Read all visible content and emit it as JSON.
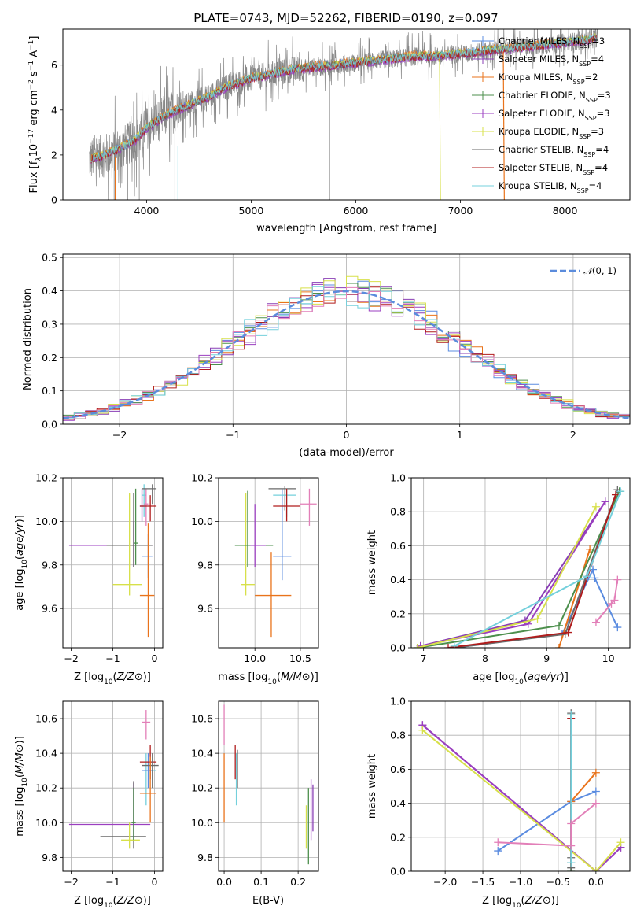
{
  "figure": {
    "title": "PLATE=0743, MJD=52262, FIBERID=0190, z=0.097"
  },
  "colors": {
    "Chabrier MILES": "#5b8ce0",
    "Salpeter MILES": "#8a3fb5",
    "Kroupa MILES": "#e9731b",
    "Chabrier ELODIE": "#4c8f4c",
    "Salpeter ELODIE": "#9b3fc0",
    "Kroupa ELODIE": "#d7e04a",
    "Chabrier STELIB": "#6a6a6a",
    "Salpeter STELIB": "#b01c1c",
    "Kroupa STELIB": "#74d0dc",
    "data": "#888888",
    "normal": "#5b8cdc",
    "pink": "#e27fb8"
  },
  "chart_data": [
    {
      "id": "spectrum",
      "type": "line",
      "title": "PLATE=0743, MJD=52262, FIBERID=0190, z=0.097",
      "xlabel": "wavelength [Angstrom, rest frame]",
      "ylabel": "Flux [f$_\\lambda$10$^{-17}$ erg cm$^{-2}$ s$^{-1}$ A$^{-1}$]",
      "ylabel_parts": [
        "Flux [f",
        "λ",
        "10",
        "−17",
        " erg cm",
        "−2",
        " s",
        "−1",
        " A",
        "−1",
        "]"
      ],
      "xlim": [
        3200,
        8620
      ],
      "ylim": [
        0,
        7.6
      ],
      "xticks": [
        4000,
        5000,
        6000,
        7000,
        8000
      ],
      "yticks": [
        0,
        2,
        4,
        6
      ],
      "grid": false,
      "legend_position": "top-right",
      "continuum": {
        "x": [
          3450,
          3600,
          3750,
          3900,
          4000,
          4200,
          4400,
          4600,
          4800,
          5000,
          5200,
          5400,
          5600,
          5800,
          6000,
          6200,
          6400,
          6600,
          6800,
          7000,
          7200,
          7400,
          7600,
          7800,
          8000,
          8200,
          8400
        ],
        "y": [
          1.8,
          2.0,
          2.3,
          2.7,
          3.2,
          3.8,
          4.2,
          4.6,
          5.1,
          5.4,
          5.6,
          5.8,
          5.9,
          6.0,
          6.1,
          6.2,
          6.3,
          6.4,
          6.4,
          6.5,
          6.6,
          6.7,
          6.8,
          6.9,
          7.0,
          7.1,
          7.3
        ]
      },
      "series": [
        {
          "label": "Chabrier MILES, N_SSP=3",
          "name": "Chabrier MILES",
          "nssp": "3"
        },
        {
          "label": "Salpeter MILES, N_SSP=4",
          "name": "Salpeter MILES",
          "nssp": "4"
        },
        {
          "label": "Kroupa MILES, N_SSP=2",
          "name": "Kroupa MILES",
          "nssp": "2"
        },
        {
          "label": "Chabrier ELODIE, N_SSP=3",
          "name": "Chabrier ELODIE",
          "nssp": "3"
        },
        {
          "label": "Salpeter ELODIE, N_SSP=3",
          "name": "Salpeter ELODIE",
          "nssp": "3"
        },
        {
          "label": "Kroupa ELODIE, N_SSP=3",
          "name": "Kroupa ELODIE",
          "nssp": "3"
        },
        {
          "label": "Chabrier STELIB, N_SSP=4",
          "name": "Chabrier STELIB",
          "nssp": "4"
        },
        {
          "label": "Salpeter STELIB, N_SSP=4",
          "name": "Salpeter STELIB",
          "nssp": "4"
        },
        {
          "label": "Kroupa STELIB, N_SSP=4",
          "name": "Kroupa STELIB",
          "nssp": "4"
        }
      ]
    },
    {
      "id": "residuals",
      "type": "line",
      "xlabel": "(data-model)/error",
      "ylabel": "Normed distribution",
      "xlim": [
        -2.5,
        2.5
      ],
      "ylim": [
        0,
        0.51
      ],
      "xticks": [
        -2,
        -1,
        0,
        1,
        2
      ],
      "yticks": [
        0.0,
        0.1,
        0.2,
        0.3,
        0.4,
        0.5
      ],
      "grid": true,
      "legend_position": "top-right",
      "legend_label": "N(0,1)",
      "bin_width": 0.1,
      "hist_series": [
        "Chabrier MILES",
        "Salpeter MILES",
        "Kroupa MILES",
        "Chabrier ELODIE",
        "Salpeter ELODIE",
        "Kroupa ELODIE",
        "Salpeter STELIB",
        "Kroupa STELIB",
        "pink"
      ]
    },
    {
      "id": "Z_age",
      "type": "scatter",
      "xlabel": "Z [log10(Z/Z⊙)]",
      "ylabel": "age [log10(age/yr)]",
      "xlim": [
        -2.2,
        0.2
      ],
      "ylim": [
        9.42,
        10.2
      ],
      "xticks": [
        -2,
        -1,
        0
      ],
      "yticks": [
        9.6,
        9.8,
        10.0,
        10.2
      ],
      "grid": true
    },
    {
      "id": "mass_age",
      "type": "scatter",
      "xlabel": "mass [log10(M/M⊙)]",
      "ylabel": "",
      "xlim": [
        9.6,
        10.7
      ],
      "ylim": [
        9.42,
        10.2
      ],
      "xticks": [
        10.0,
        10.5
      ],
      "yticks": [
        9.6,
        9.8,
        10.0,
        10.2
      ],
      "grid": true
    },
    {
      "id": "age_weight",
      "type": "line",
      "xlabel": "age [log10(age/yr)]",
      "ylabel": "mass weight",
      "xlim": [
        6.8,
        10.35
      ],
      "ylim": [
        0,
        1.0
      ],
      "xticks": [
        7,
        8,
        9,
        10
      ],
      "yticks": [
        0.0,
        0.2,
        0.4,
        0.6,
        0.8,
        1.0
      ],
      "grid": true
    },
    {
      "id": "Z_mass",
      "type": "scatter",
      "xlabel": "Z [log10(Z/Z⊙)]",
      "ylabel": "mass [log10(M/M⊙)]",
      "xlim": [
        -2.2,
        0.2
      ],
      "ylim": [
        9.72,
        10.7
      ],
      "xticks": [
        -2,
        -1,
        0
      ],
      "yticks": [
        9.8,
        10.0,
        10.2,
        10.4,
        10.6
      ],
      "grid": true
    },
    {
      "id": "ebv_mass",
      "type": "scatter",
      "xlabel": "E(B-V)",
      "ylabel": "",
      "xlim": [
        -0.015,
        0.255
      ],
      "ylim": [
        9.72,
        10.7
      ],
      "xticks": [
        0.0,
        0.1,
        0.2
      ],
      "yticks": [
        9.8,
        10.0,
        10.2,
        10.4,
        10.6
      ],
      "grid": true
    },
    {
      "id": "Z_weight",
      "type": "line",
      "xlabel": "Z [log10(Z/Z⊙)]",
      "ylabel": "mass weight",
      "xlim": [
        -2.45,
        0.45
      ],
      "ylim": [
        0,
        1.0
      ],
      "xticks": [
        -2.0,
        -1.5,
        -1.0,
        -0.5,
        0.0
      ],
      "yticks": [
        0.0,
        0.2,
        0.4,
        0.6,
        0.8,
        1.0
      ],
      "grid": true
    }
  ],
  "age_weight_series": [
    {
      "name": "Chabrier MILES",
      "age": [
        7.5,
        9.25,
        9.75,
        9.78,
        10.15
      ],
      "w": [
        0.0,
        0.08,
        0.46,
        0.41,
        0.12
      ]
    },
    {
      "name": "Salpeter MILES",
      "age": [
        6.95,
        8.65,
        9.95
      ],
      "w": [
        0.01,
        0.16,
        0.86
      ]
    },
    {
      "name": "Kroupa MILES",
      "age": [
        9.2,
        9.7
      ],
      "w": [
        0.0,
        0.58
      ]
    },
    {
      "name": "Chabrier ELODIE",
      "age": [
        6.9,
        9.2,
        10.18
      ],
      "w": [
        0.0,
        0.13,
        0.92
      ]
    },
    {
      "name": "Salpeter ELODIE",
      "age": [
        6.95,
        8.7,
        9.95
      ],
      "w": [
        0.01,
        0.14,
        0.86
      ]
    },
    {
      "name": "Kroupa ELODIE",
      "age": [
        6.9,
        8.85,
        9.8
      ],
      "w": [
        0.0,
        0.17,
        0.83
      ]
    },
    {
      "name": "Chabrier STELIB",
      "age": [
        7.5,
        9.3,
        10.15
      ],
      "w": [
        0.0,
        0.08,
        0.93
      ]
    },
    {
      "name": "Salpeter STELIB",
      "age": [
        7.4,
        9.35,
        10.12
      ],
      "w": [
        0.0,
        0.09,
        0.9
      ]
    },
    {
      "name": "Kroupa STELIB",
      "age": [
        7.5,
        9.65,
        10.2
      ],
      "w": [
        0.01,
        0.42,
        0.92
      ]
    },
    {
      "name": "pink",
      "age": [
        9.8,
        10.05,
        10.1,
        10.15
      ],
      "w": [
        0.15,
        0.26,
        0.28,
        0.4
      ]
    }
  ],
  "Z_weight_series": [
    {
      "name": "Chabrier MILES",
      "Z": [
        -1.3,
        -0.33,
        0.0
      ],
      "w": [
        0.12,
        0.41,
        0.47
      ]
    },
    {
      "name": "Salpeter MILES",
      "Z": [
        -2.3,
        0.0,
        0.33
      ],
      "w": [
        0.86,
        0.0,
        0.14
      ]
    },
    {
      "name": "Kroupa MILES",
      "Z": [
        -0.33,
        0.0
      ],
      "w": [
        0.41,
        0.58
      ]
    },
    {
      "name": "Chabrier ELODIE",
      "Z": [
        -0.33,
        -0.33
      ],
      "w": [
        0.0,
        0.92
      ]
    },
    {
      "name": "Salpeter ELODIE",
      "Z": [
        -2.3,
        0.0,
        0.33
      ],
      "w": [
        0.86,
        0.0,
        0.14
      ]
    },
    {
      "name": "Kroupa ELODIE",
      "Z": [
        -2.3,
        0.0,
        0.33
      ],
      "w": [
        0.83,
        0.0,
        0.17
      ]
    },
    {
      "name": "Chabrier STELIB",
      "Z": [
        -0.33,
        -0.33,
        -0.33
      ],
      "w": [
        0.02,
        0.08,
        0.93
      ]
    },
    {
      "name": "Salpeter STELIB",
      "Z": [
        -0.33,
        -0.33
      ],
      "w": [
        0.05,
        0.9
      ]
    },
    {
      "name": "Kroupa STELIB",
      "Z": [
        -0.33,
        -0.33
      ],
      "w": [
        0.05,
        0.92
      ]
    },
    {
      "name": "pink",
      "Z": [
        -1.3,
        -0.33,
        -0.33,
        0.0
      ],
      "w": [
        0.17,
        0.15,
        0.28,
        0.4
      ]
    }
  ],
  "Z_age_points": [
    {
      "name": "Salpeter ELODIE",
      "Z": -0.5,
      "Zlo": -2.05,
      "Zhi": -0.05,
      "age": 9.89,
      "alo": 9.79,
      "ahi": 10.0
    },
    {
      "name": "Chabrier STELIB",
      "Z": -0.5,
      "Zlo": -1.15,
      "Zhi": -0.05,
      "age": 9.89,
      "alo": 9.79,
      "ahi": 10.13
    },
    {
      "name": "Kroupa ELODIE",
      "Z": -0.6,
      "Zlo": -1.0,
      "Zhi": -0.3,
      "age": 9.71,
      "alo": 9.66,
      "ahi": 10.13
    },
    {
      "name": "Chabrier ELODIE",
      "Z": -0.45,
      "Zlo": -0.5,
      "Zhi": -0.4,
      "age": 9.9,
      "alo": 9.8,
      "ahi": 10.15
    },
    {
      "name": "Salpeter MILES",
      "Z": -0.3,
      "Zlo": -0.35,
      "Zhi": -0.25,
      "age": 10.07,
      "alo": 10.0,
      "ahi": 10.15
    },
    {
      "name": "Kroupa STELIB",
      "Z": -0.25,
      "Zlo": -0.3,
      "Zhi": -0.2,
      "age": 10.12,
      "alo": 10.02,
      "ahi": 10.17
    },
    {
      "name": "pink",
      "Z": -0.2,
      "Zlo": -0.25,
      "Zhi": -0.15,
      "age": 10.08,
      "alo": 9.98,
      "ahi": 10.15
    },
    {
      "name": "Chabrier MILES",
      "Z": -0.15,
      "Zlo": -0.3,
      "Zhi": -0.05,
      "age": 9.84,
      "alo": 9.74,
      "ahi": 9.94
    },
    {
      "name": "Salpeter STELIB",
      "Z": -0.1,
      "Zlo": -0.35,
      "Zhi": 0.05,
      "age": 10.07,
      "alo": 10.0,
      "ahi": 10.12
    },
    {
      "name": "Kroupa MILES",
      "Z": -0.15,
      "Zlo": -0.35,
      "Zhi": 0.0,
      "age": 9.66,
      "alo": 9.47,
      "ahi": 9.99
    },
    {
      "name": "Chabrier STELIB",
      "Z": -0.05,
      "Zlo": -0.3,
      "Zhi": 0.05,
      "age": 10.15,
      "alo": 10.08,
      "ahi": 10.17
    }
  ],
  "mass_age_points": [
    {
      "name": "Kroupa ELODIE",
      "m": 9.9,
      "mlo": 9.85,
      "mhi": 10.0,
      "age": 9.71,
      "alo": 9.66,
      "ahi": 10.13
    },
    {
      "name": "Chabrier ELODIE",
      "m": 9.92,
      "mlo": 9.78,
      "mhi": 10.2,
      "age": 9.89,
      "alo": 9.79,
      "ahi": 10.14
    },
    {
      "name": "Salpeter ELODIE",
      "m": 10.0,
      "mlo": 9.95,
      "mhi": 10.12,
      "age": 9.89,
      "alo": 9.79,
      "ahi": 10.08
    },
    {
      "name": "Kroupa MILES",
      "m": 10.18,
      "mlo": 10.0,
      "mhi": 10.4,
      "age": 9.66,
      "alo": 9.47,
      "ahi": 9.86
    },
    {
      "name": "Chabrier MILES",
      "m": 10.3,
      "mlo": 10.2,
      "mhi": 10.4,
      "age": 9.84,
      "alo": 9.73,
      "ahi": 10.15
    },
    {
      "name": "Chabrier STELIB",
      "m": 10.33,
      "mlo": 10.15,
      "mhi": 10.45,
      "age": 10.15,
      "alo": 10.05,
      "ahi": 10.16
    },
    {
      "name": "Kroupa STELIB",
      "m": 10.35,
      "mlo": 10.2,
      "mhi": 10.45,
      "age": 10.12,
      "alo": 10.02,
      "ahi": 10.15
    },
    {
      "name": "Salpeter STELIB",
      "m": 10.35,
      "mlo": 10.2,
      "mhi": 10.5,
      "age": 10.07,
      "alo": 10.0,
      "ahi": 10.15
    },
    {
      "name": "pink",
      "m": 10.6,
      "mlo": 10.5,
      "mhi": 10.68,
      "age": 10.08,
      "alo": 9.98,
      "ahi": 10.15
    }
  ],
  "Z_mass_points": [
    {
      "name": "Salpeter ELODIE",
      "Z": -0.5,
      "Zlo": -2.05,
      "Zhi": -0.1,
      "m": 9.99,
      "mlo": 9.9,
      "mhi": 10.23
    },
    {
      "name": "Chabrier STELIB",
      "Z": -0.5,
      "Zlo": -1.3,
      "Zhi": -0.2,
      "m": 9.92,
      "mlo": 9.85,
      "mhi": 10.24
    },
    {
      "name": "Kroupa ELODIE",
      "Z": -0.6,
      "Zlo": -0.8,
      "Zhi": -0.35,
      "m": 9.9,
      "mlo": 9.85,
      "mhi": 10.0
    },
    {
      "name": "Chabrier ELODIE",
      "Z": -0.5,
      "Zlo": -0.55,
      "Zhi": -0.45,
      "m": 10.0,
      "mlo": 9.9,
      "mhi": 10.2
    },
    {
      "name": "Kroupa STELIB",
      "Z": -0.2,
      "Zlo": -0.3,
      "Zhi": 0.05,
      "m": 10.3,
      "mlo": 10.1,
      "mhi": 10.4
    },
    {
      "name": "Chabrier MILES",
      "Z": -0.15,
      "Zlo": -0.3,
      "Zhi": -0.05,
      "m": 10.3,
      "mlo": 10.2,
      "mhi": 10.4
    },
    {
      "name": "Salpeter STELIB",
      "Z": -0.1,
      "Zlo": -0.35,
      "Zhi": 0.05,
      "m": 10.35,
      "mlo": 10.25,
      "mhi": 10.45
    },
    {
      "name": "Chabrier STELIB",
      "Z": -0.05,
      "Zlo": -0.3,
      "Zhi": 0.1,
      "m": 10.33,
      "mlo": 10.2,
      "mhi": 10.4
    },
    {
      "name": "Kroupa MILES",
      "Z": -0.1,
      "Zlo": -0.35,
      "Zhi": 0.05,
      "m": 10.17,
      "mlo": 10.0,
      "mhi": 10.38
    },
    {
      "name": "pink",
      "Z": -0.2,
      "Zlo": -0.3,
      "Zhi": -0.1,
      "m": 10.58,
      "mlo": 10.48,
      "mhi": 10.65
    }
  ],
  "ebv_mass_points": [
    {
      "name": "pink",
      "e": 0.0,
      "m": 10.55,
      "mlo": 10.45,
      "mhi": 10.68
    },
    {
      "name": "Kroupa MILES",
      "e": 0.0,
      "m": 10.2,
      "mlo": 10.0,
      "mhi": 10.4
    },
    {
      "name": "Kroupa STELIB",
      "e": 0.033,
      "m": 10.3,
      "mlo": 10.1,
      "mhi": 10.4
    },
    {
      "name": "Salpeter STELIB",
      "e": 0.03,
      "m": 10.35,
      "mlo": 10.25,
      "mhi": 10.45
    },
    {
      "name": "Chabrier STELIB",
      "e": 0.036,
      "m": 10.33,
      "mlo": 10.2,
      "mhi": 10.42
    },
    {
      "name": "Kroupa ELODIE",
      "e": 0.222,
      "m": 9.95,
      "mlo": 9.85,
      "mhi": 10.1
    },
    {
      "name": "Chabrier ELODIE",
      "e": 0.228,
      "m": 9.95,
      "mlo": 9.76,
      "mhi": 10.2
    },
    {
      "name": "Salpeter ELODIE",
      "e": 0.235,
      "m": 10.05,
      "mlo": 9.9,
      "mhi": 10.25
    },
    {
      "name": "Salpeter MILES",
      "e": 0.24,
      "m": 10.1,
      "mlo": 9.95,
      "mhi": 10.22
    }
  ]
}
